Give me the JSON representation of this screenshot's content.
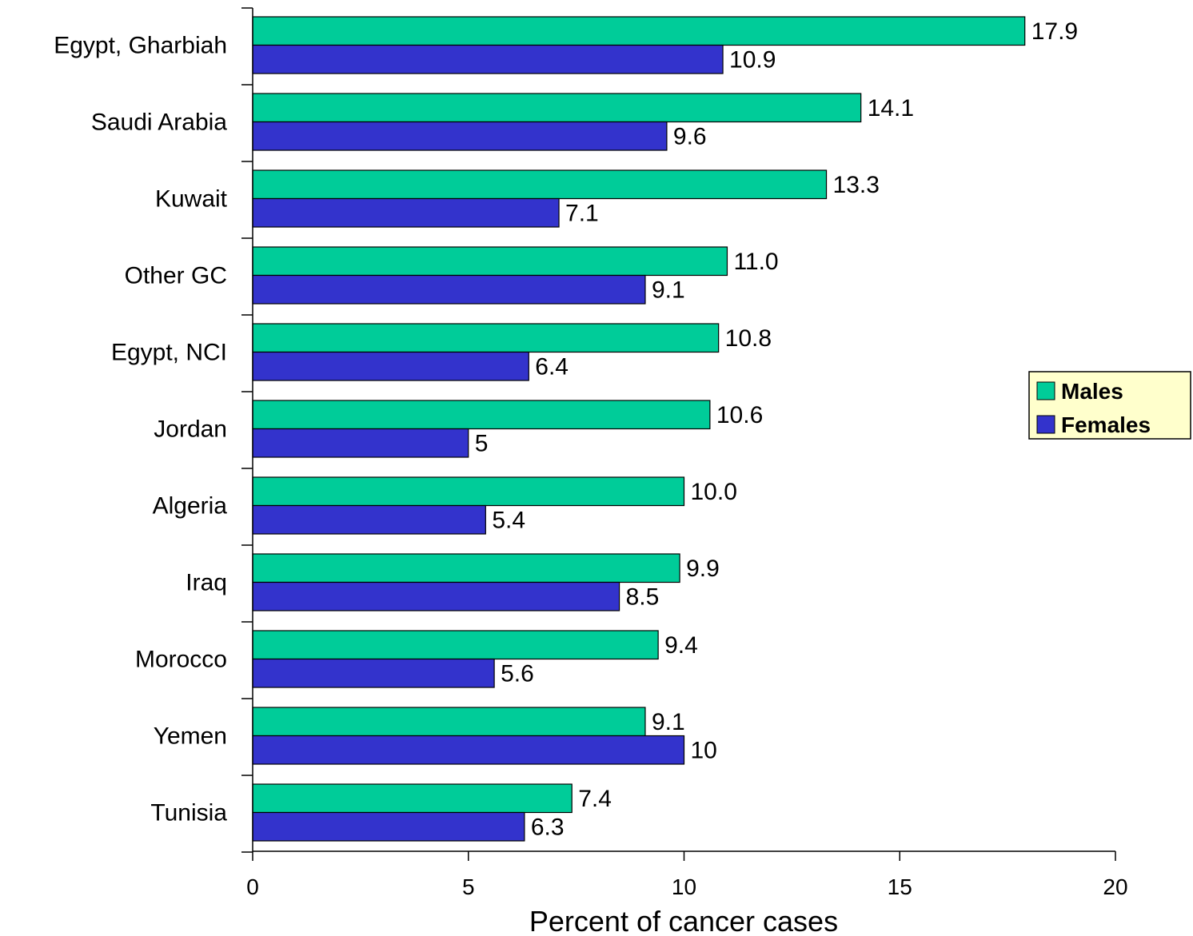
{
  "chart_data": {
    "type": "bar",
    "orientation": "horizontal",
    "title": "",
    "xlabel": "Percent of cancer cases",
    "ylabel": "",
    "xlim": [
      0,
      20
    ],
    "xticks": [
      0,
      5,
      10,
      15,
      20
    ],
    "xtick_labels": [
      "0",
      "5",
      "10",
      "15",
      "20"
    ],
    "grid": false,
    "legend_position": "right",
    "categories": [
      "Egypt, Gharbiah",
      "Saudi Arabia",
      "Kuwait",
      "Other GC",
      "Egypt, NCI",
      "Jordan",
      "Algeria",
      "Iraq",
      "Morocco",
      "Yemen",
      "Tunisia"
    ],
    "series": [
      {
        "name": "Males",
        "color": "#00cc99",
        "values": [
          17.9,
          14.1,
          13.3,
          11.0,
          10.8,
          10.6,
          10.0,
          9.9,
          9.4,
          9.1,
          7.4
        ],
        "labels": [
          "17.9",
          "14.1",
          "13.3",
          "11.0",
          "10.8",
          "10.6",
          "10.0",
          "9.9",
          "9.4",
          "9.1",
          "7.4"
        ]
      },
      {
        "name": "Females",
        "color": "#3333cc",
        "values": [
          10.9,
          9.6,
          7.1,
          9.1,
          6.4,
          5,
          5.4,
          8.5,
          5.6,
          10,
          6.3
        ],
        "labels": [
          "10.9",
          "9.6",
          "7.1",
          "9.1",
          "6.4",
          "5",
          "5.4",
          "8.5",
          "5.6",
          "10",
          "6.3"
        ]
      }
    ],
    "legend_background": "#ffffcc"
  }
}
